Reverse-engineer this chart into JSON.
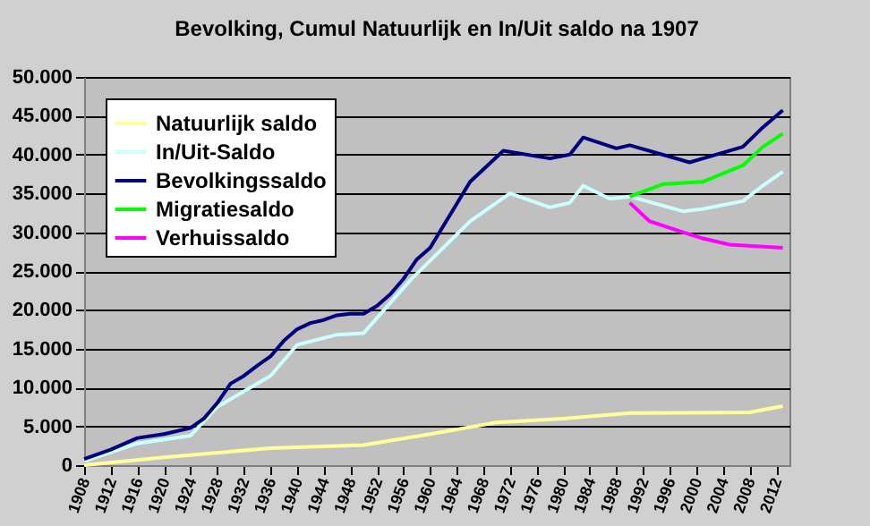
{
  "chart_data": {
    "type": "line",
    "title": "Bevolking, Cumul Natuurlijk en In/Uit saldo na 1907",
    "xlim": [
      1908,
      2014
    ],
    "xticks": [
      1908,
      1912,
      1916,
      1920,
      1924,
      1928,
      1932,
      1936,
      1940,
      1944,
      1948,
      1952,
      1956,
      1960,
      1964,
      1968,
      1972,
      1976,
      1980,
      1984,
      1988,
      1992,
      1996,
      2000,
      2004,
      2008,
      2012
    ],
    "ylim": [
      0,
      50000
    ],
    "yticks": [
      {
        "value": 0,
        "label": "0"
      },
      {
        "value": 5000,
        "label": "5.000"
      },
      {
        "value": 10000,
        "label": "10.000"
      },
      {
        "value": 15000,
        "label": "15.000"
      },
      {
        "value": 20000,
        "label": "20.000"
      },
      {
        "value": 25000,
        "label": "25.000"
      },
      {
        "value": 30000,
        "label": "30.000"
      },
      {
        "value": 35000,
        "label": "35.000"
      },
      {
        "value": 40000,
        "label": "40.000"
      },
      {
        "value": 45000,
        "label": "45.000"
      },
      {
        "value": 50000,
        "label": "50.000"
      }
    ],
    "grid": "y",
    "legend": "top left",
    "marker": "none",
    "line_style": "solid",
    "series": [
      {
        "name": "Natuurlijk saldo",
        "color": "#ffff99",
        "x": [
          1908,
          1920,
          1936,
          1950,
          1960,
          1970,
          1980,
          1990,
          2008,
          2013
        ],
        "values": [
          0,
          1000,
          2200,
          2600,
          4000,
          5500,
          6000,
          6700,
          6800,
          7600
        ]
      },
      {
        "name": "In/Uit-Saldo",
        "color": "#ccffff",
        "x": [
          1908,
          1916,
          1924,
          1928,
          1936,
          1940,
          1946,
          1950,
          1957,
          1966,
          1972,
          1978,
          1981,
          1983,
          1987,
          1990,
          1998,
          2001,
          2007,
          2010,
          2013
        ],
        "values": [
          500,
          2800,
          3800,
          7500,
          11500,
          15500,
          16800,
          17000,
          23800,
          31400,
          35000,
          33200,
          33800,
          36000,
          34300,
          34600,
          32700,
          33000,
          34000,
          36000,
          37800
        ]
      },
      {
        "name": "Bevolkingssaldo",
        "color": "#000080",
        "x": [
          1908,
          1912,
          1916,
          1920,
          1924,
          1926,
          1928,
          1930,
          1932,
          1934,
          1936,
          1938,
          1940,
          1942,
          1944,
          1946,
          1948,
          1950,
          1952,
          1954,
          1956,
          1958,
          1960,
          1966,
          1971,
          1978,
          1981,
          1983,
          1988,
          1990,
          1999,
          2001,
          2007,
          2010,
          2013
        ],
        "values": [
          800,
          2000,
          3500,
          4000,
          4800,
          6000,
          8000,
          10500,
          11500,
          12800,
          14000,
          16000,
          17500,
          18300,
          18700,
          19300,
          19500,
          19500,
          20500,
          22000,
          24000,
          26500,
          28000,
          36500,
          40500,
          39500,
          40000,
          42200,
          40800,
          41200,
          39000,
          39500,
          41000,
          43500,
          45700
        ]
      },
      {
        "name": "Migratiesaldo",
        "color": "#00ff00",
        "x": [
          1990,
          1995,
          2001,
          2007,
          2010,
          2013
        ],
        "values": [
          34600,
          36200,
          36500,
          38600,
          41000,
          42700
        ]
      },
      {
        "name": "Verhuissaldo",
        "color": "#ff00ff",
        "x": [
          1990,
          1993,
          1998,
          2001,
          2005,
          2013
        ],
        "values": [
          33800,
          31400,
          30000,
          29200,
          28400,
          28000
        ]
      }
    ]
  }
}
